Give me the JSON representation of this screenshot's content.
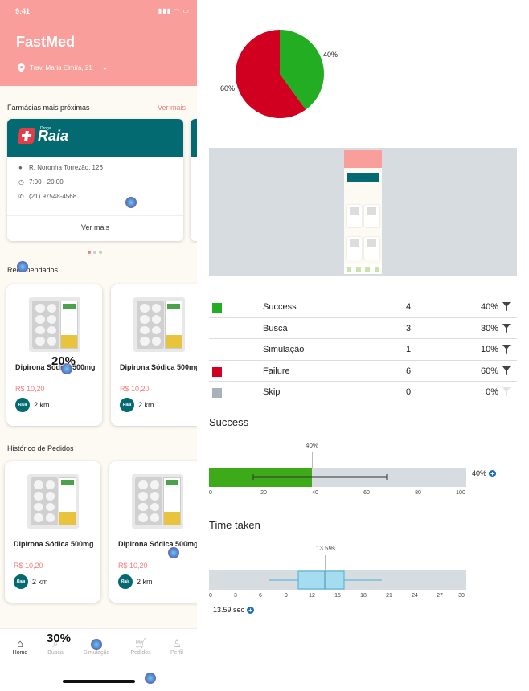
{
  "phone": {
    "status_time": "9:41",
    "app_title": "FastMed",
    "location": "Trav. Maria Elmira, 21",
    "nearby_title": "Farmácias mais próximas",
    "see_more_link": "Ver mais",
    "pharmacy": {
      "brand_small": "Droga",
      "brand": "Raia",
      "address": "R. Noronha Torrezão, 126",
      "hours": "7:00 - 20:00",
      "phone": "(21) 97548-4568",
      "button": "Ver mais"
    },
    "recommended_title": "Recomendados",
    "history_title": "Histórico de Pedidos",
    "products": [
      {
        "name": "Dipirona Sódica 500mg",
        "price": "R$ 10,20",
        "distance": "2 km",
        "store_logo": "Raia"
      },
      {
        "name": "Dipirona Sódica 500mg",
        "price": "R$ 10,20",
        "distance": "2 km",
        "store_logo": "Raia"
      },
      {
        "name": "Dipirona Sódica 500mg",
        "price": "R$ 10,20",
        "distance": "2 km",
        "store_logo": "Raia"
      },
      {
        "name": "Dipirona Sódica 500mg",
        "price": "R$ 10,20",
        "distance": "2 km",
        "store_logo": "Raia"
      }
    ],
    "tabs": [
      {
        "label": "Home",
        "icon": "home-icon"
      },
      {
        "label": "Busca",
        "icon": "search-icon"
      },
      {
        "label": "Simulação",
        "icon": "simulation-icon"
      },
      {
        "label": "Pedidos",
        "icon": "cart-icon"
      },
      {
        "label": "Perfil",
        "icon": "profile-icon"
      }
    ],
    "overlay_labels": {
      "spot_a": "20%",
      "spot_b": "30%"
    }
  },
  "analytics": {
    "pie": {
      "success_pct_label": "40%",
      "failure_pct_label": "60%",
      "success": 40,
      "failure": 60,
      "success_color": "#23ad23",
      "failure_color": "#d10020"
    },
    "table": [
      {
        "name": "Success",
        "count": "4",
        "pct": "40%",
        "color": "#23ad23",
        "filter": true
      },
      {
        "name": "Busca",
        "count": "3",
        "pct": "30%",
        "color": "",
        "filter": true
      },
      {
        "name": "Simulação",
        "count": "1",
        "pct": "10%",
        "color": "",
        "filter": true
      },
      {
        "name": "Failure",
        "count": "6",
        "pct": "60%",
        "color": "#d10020",
        "filter": true
      },
      {
        "name": "Skip",
        "count": "0",
        "pct": "0%",
        "color": "#a9b2b8",
        "filter": false
      }
    ],
    "success_title": "Success",
    "success_value": "40%",
    "success_side": "40%",
    "success_ticks": [
      "0",
      "20",
      "40",
      "60",
      "80",
      "100"
    ],
    "time_title": "Time taken",
    "time_median": "13.59s",
    "time_ticks": [
      "0",
      "3",
      "6",
      "9",
      "12",
      "15",
      "18",
      "21",
      "24",
      "27",
      "30"
    ],
    "time_side": "13.59 sec"
  }
}
